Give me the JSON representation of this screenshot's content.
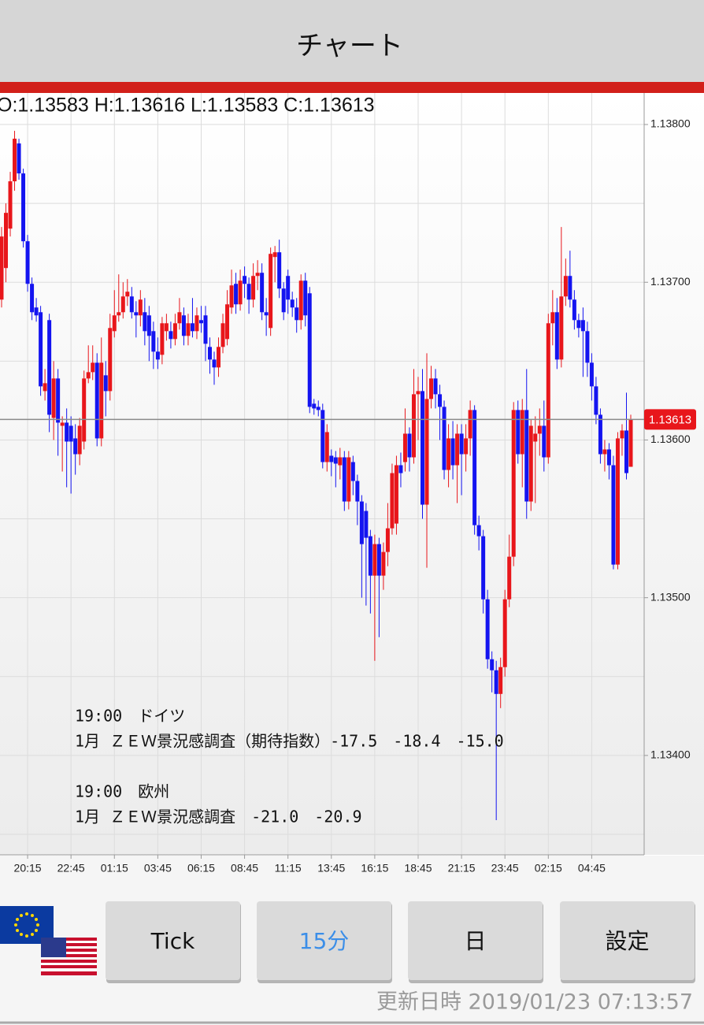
{
  "header": {
    "title": "チャート"
  },
  "chart_data": {
    "type": "candlestick",
    "ohlc_label": "O:1.13583 H:1.13616 L:1.13583 C:1.13613",
    "up_color": "#e8161b",
    "down_color": "#1414f0",
    "categories": [
      null,
      null,
      null,
      null,
      null,
      null,
      "20:15",
      null,
      null,
      null,
      null,
      null,
      null,
      null,
      null,
      null,
      "22:45",
      null,
      null,
      null,
      null,
      null,
      null,
      null,
      null,
      null,
      "01:15",
      null,
      null,
      null,
      null,
      null,
      null,
      null,
      null,
      null,
      "03:45",
      null,
      null,
      null,
      null,
      null,
      null,
      null,
      null,
      null,
      "06:15",
      null,
      null,
      null,
      null,
      null,
      null,
      null,
      null,
      null,
      "08:45",
      null,
      null,
      null,
      null,
      null,
      null,
      null,
      null,
      null,
      "11:15",
      null,
      null,
      null,
      null,
      null,
      null,
      null,
      null,
      null,
      "13:45",
      null,
      null,
      null,
      null,
      null,
      null,
      null,
      null,
      null,
      "16:15",
      null,
      null,
      null,
      null,
      null,
      null,
      null,
      null,
      null,
      "18:45",
      null,
      null,
      null,
      null,
      null,
      null,
      null,
      null,
      null,
      "21:15",
      null,
      null,
      null,
      null,
      null,
      null,
      null,
      null,
      null,
      "23:45",
      null,
      null,
      null,
      null,
      null,
      null,
      null,
      null,
      null,
      "02:15",
      null,
      null,
      null,
      null,
      null,
      null,
      null,
      null,
      null,
      "04:45",
      null,
      null,
      null,
      null,
      null,
      null,
      null,
      null,
      null
    ],
    "ohlc": [
      [
        1.13689,
        1.13735,
        1.13684,
        1.13729
      ],
      [
        1.13709,
        1.1375,
        1.137,
        1.13744
      ],
      [
        1.13734,
        1.1377,
        1.13729,
        1.13764
      ],
      [
        1.13764,
        1.13796,
        1.13758,
        1.13791
      ],
      [
        1.13788,
        1.13791,
        1.13765,
        1.13769
      ],
      [
        1.13769,
        1.13772,
        1.13722,
        1.13726
      ],
      [
        1.13726,
        1.1373,
        1.13694,
        1.13699
      ],
      [
        1.13699,
        1.13703,
        1.13676,
        1.13681
      ],
      [
        1.13684,
        1.1369,
        1.13675,
        1.13679
      ],
      [
        1.13681,
        1.13685,
        1.13628,
        1.13634
      ],
      [
        1.13631,
        1.13645,
        1.13625,
        1.13636
      ],
      [
        1.13676,
        1.1368,
        1.13605,
        1.13616
      ],
      [
        1.13614,
        1.1365,
        1.136,
        1.13639
      ],
      [
        1.13639,
        1.13645,
        1.1359,
        1.13611
      ],
      [
        1.13609,
        1.13615,
        1.1358,
        1.13611
      ],
      [
        1.13611,
        1.1362,
        1.1357,
        1.13599
      ],
      [
        1.13609,
        1.13615,
        1.13566,
        1.13599
      ],
      [
        1.13601,
        1.1361,
        1.13578,
        1.13591
      ],
      [
        1.13591,
        1.13614,
        1.13584,
        1.13609
      ],
      [
        1.13599,
        1.13644,
        1.13594,
        1.13639
      ],
      [
        1.13639,
        1.1366,
        1.13636,
        1.13643
      ],
      [
        1.13643,
        1.1366,
        1.13638,
        1.13649
      ],
      [
        1.13649,
        1.13655,
        1.13596,
        1.13601
      ],
      [
        1.13601,
        1.13665,
        1.13596,
        1.13649
      ],
      [
        1.13641,
        1.1365,
        1.13615,
        1.13631
      ],
      [
        1.13631,
        1.1368,
        1.13625,
        1.13671
      ],
      [
        1.13669,
        1.13695,
        1.13665,
        1.13679
      ],
      [
        1.13679,
        1.13705,
        1.13675,
        1.13681
      ],
      [
        1.13681,
        1.137,
        1.13677,
        1.13691
      ],
      [
        1.13691,
        1.13702,
        1.13685,
        1.13694
      ],
      [
        1.13691,
        1.13697,
        1.13677,
        1.13681
      ],
      [
        1.13681,
        1.13688,
        1.13665,
        1.13679
      ],
      [
        1.13679,
        1.13695,
        1.13672,
        1.13689
      ],
      [
        1.13681,
        1.1369,
        1.1366,
        1.13669
      ],
      [
        1.13679,
        1.13685,
        1.1365,
        1.13666
      ],
      [
        1.13669,
        1.13675,
        1.13645,
        1.13656
      ],
      [
        1.13656,
        1.13665,
        1.13645,
        1.13651
      ],
      [
        1.13654,
        1.13678,
        1.13648,
        1.13674
      ],
      [
        1.13669,
        1.1368,
        1.13663,
        1.13674
      ],
      [
        1.13669,
        1.13675,
        1.13658,
        1.13664
      ],
      [
        1.13664,
        1.1368,
        1.1366,
        1.13674
      ],
      [
        1.13674,
        1.1369,
        1.1367,
        1.13681
      ],
      [
        1.13679,
        1.13684,
        1.1366,
        1.13666
      ],
      [
        1.13666,
        1.1368,
        1.1366,
        1.13674
      ],
      [
        1.13674,
        1.1369,
        1.13665,
        1.13669
      ],
      [
        1.13669,
        1.13684,
        1.13664,
        1.13679
      ],
      [
        1.13676,
        1.13685,
        1.13668,
        1.13674
      ],
      [
        1.13679,
        1.13685,
        1.1365,
        1.13661
      ],
      [
        1.13659,
        1.13665,
        1.13642,
        1.13651
      ],
      [
        1.13651,
        1.13656,
        1.13635,
        1.13646
      ],
      [
        1.13646,
        1.13665,
        1.1364,
        1.13659
      ],
      [
        1.13659,
        1.1368,
        1.13655,
        1.13674
      ],
      [
        1.13664,
        1.13695,
        1.1366,
        1.13686
      ],
      [
        1.13684,
        1.13708,
        1.1368,
        1.13698
      ],
      [
        1.13699,
        1.13706,
        1.1368,
        1.13686
      ],
      [
        1.13686,
        1.13708,
        1.13682,
        1.13701
      ],
      [
        1.13704,
        1.1371,
        1.1369,
        1.13699
      ],
      [
        1.13699,
        1.13703,
        1.1368,
        1.13689
      ],
      [
        1.13689,
        1.13712,
        1.13684,
        1.13704
      ],
      [
        1.13704,
        1.13714,
        1.13695,
        1.13706
      ],
      [
        1.13706,
        1.13712,
        1.13676,
        1.13681
      ],
      [
        1.13681,
        1.1369,
        1.13666,
        1.13679
      ],
      [
        1.13671,
        1.13722,
        1.13666,
        1.13718
      ],
      [
        1.13716,
        1.13723,
        1.137,
        1.13719
      ],
      [
        1.13719,
        1.13727,
        1.1369,
        1.13696
      ],
      [
        1.13696,
        1.137,
        1.13676,
        1.13681
      ],
      [
        1.13704,
        1.13708,
        1.1368,
        1.13689
      ],
      [
        1.13689,
        1.13694,
        1.13678,
        1.13684
      ],
      [
        1.13684,
        1.1369,
        1.13668,
        1.13676
      ],
      [
        1.13676,
        1.13705,
        1.1367,
        1.13701
      ],
      [
        1.13701,
        1.13706,
        1.13672,
        1.13679
      ],
      [
        1.13693,
        1.13697,
        1.13617,
        1.13621
      ],
      [
        1.13623,
        1.13626,
        1.13616,
        1.1362
      ],
      [
        1.13621,
        1.13625,
        1.13615,
        1.13619
      ],
      [
        1.13619,
        1.13623,
        1.13582,
        1.13586
      ],
      [
        1.13586,
        1.1361,
        1.1358,
        1.13605
      ],
      [
        1.1359,
        1.13594,
        1.13577,
        1.13586
      ],
      [
        1.13589,
        1.13593,
        1.1357,
        1.13585
      ],
      [
        1.13584,
        1.13595,
        1.13575,
        1.13589
      ],
      [
        1.13589,
        1.13593,
        1.13555,
        1.13561
      ],
      [
        1.13561,
        1.13593,
        1.13556,
        1.13589
      ],
      [
        1.13586,
        1.1359,
        1.13565,
        1.13574
      ],
      [
        1.13574,
        1.13578,
        1.13546,
        1.13561
      ],
      [
        1.13561,
        1.13565,
        1.135,
        1.13534
      ],
      [
        1.13555,
        1.1356,
        1.13495,
        1.13538
      ],
      [
        1.13539,
        1.13543,
        1.1349,
        1.13514
      ],
      [
        1.13514,
        1.1354,
        1.1346,
        1.13534
      ],
      [
        1.13534,
        1.13538,
        1.13475,
        1.13514
      ],
      [
        1.13514,
        1.13535,
        1.13505,
        1.13529
      ],
      [
        1.13529,
        1.1356,
        1.1352,
        1.13544
      ],
      [
        1.13544,
        1.13585,
        1.1354,
        1.13579
      ],
      [
        1.13547,
        1.1359,
        1.1354,
        1.13584
      ],
      [
        1.13584,
        1.13592,
        1.1357,
        1.13579
      ],
      [
        1.13586,
        1.1362,
        1.1358,
        1.13604
      ],
      [
        1.13604,
        1.13608,
        1.1358,
        1.13589
      ],
      [
        1.13589,
        1.13645,
        1.13585,
        1.13629
      ],
      [
        1.13629,
        1.1364,
        1.136,
        1.13631
      ],
      [
        1.13631,
        1.13645,
        1.1355,
        1.13559
      ],
      [
        1.13559,
        1.13655,
        1.13519,
        1.13626
      ],
      [
        1.13626,
        1.13647,
        1.1362,
        1.13639
      ],
      [
        1.13639,
        1.13645,
        1.1362,
        1.13629
      ],
      [
        1.13629,
        1.13635,
        1.136,
        1.13621
      ],
      [
        1.13621,
        1.13625,
        1.13575,
        1.13581
      ],
      [
        1.13581,
        1.1361,
        1.1357,
        1.13601
      ],
      [
        1.13601,
        1.13612,
        1.13575,
        1.13584
      ],
      [
        1.13584,
        1.1361,
        1.1356,
        1.13604
      ],
      [
        1.13604,
        1.1361,
        1.13565,
        1.13591
      ],
      [
        1.13591,
        1.1361,
        1.1358,
        1.13601
      ],
      [
        1.13601,
        1.13625,
        1.1359,
        1.13619
      ],
      [
        1.13619,
        1.13622,
        1.1354,
        1.13546
      ],
      [
        1.13546,
        1.13552,
        1.1353,
        1.13539
      ],
      [
        1.13539,
        1.13543,
        1.1349,
        1.13499
      ],
      [
        1.13499,
        1.13505,
        1.13455,
        1.13461
      ],
      [
        1.13461,
        1.13466,
        1.1344,
        1.13454
      ],
      [
        1.13454,
        1.1346,
        1.13359,
        1.13439
      ],
      [
        1.13439,
        1.13462,
        1.1343,
        1.13456
      ],
      [
        1.13456,
        1.13505,
        1.1345,
        1.13499
      ],
      [
        1.13499,
        1.1354,
        1.13494,
        1.13526
      ],
      [
        1.13526,
        1.13624,
        1.1352,
        1.13619
      ],
      [
        1.13619,
        1.13625,
        1.13585,
        1.13591
      ],
      [
        1.13591,
        1.13626,
        1.1357,
        1.13619
      ],
      [
        1.13619,
        1.13645,
        1.1355,
        1.13561
      ],
      [
        1.13561,
        1.13613,
        1.13555,
        1.13609
      ],
      [
        1.13599,
        1.13615,
        1.1356,
        1.13604
      ],
      [
        1.13604,
        1.1362,
        1.1359,
        1.13609
      ],
      [
        1.13609,
        1.13625,
        1.1358,
        1.13589
      ],
      [
        1.13589,
        1.1368,
        1.13585,
        1.13674
      ],
      [
        1.13674,
        1.13695,
        1.1366,
        1.13681
      ],
      [
        1.13681,
        1.1369,
        1.13645,
        1.13651
      ],
      [
        1.13651,
        1.13735,
        1.13646,
        1.13691
      ],
      [
        1.13691,
        1.13715,
        1.13685,
        1.13704
      ],
      [
        1.13704,
        1.1372,
        1.13684,
        1.13689
      ],
      [
        1.13689,
        1.13695,
        1.1367,
        1.13676
      ],
      [
        1.13676,
        1.1368,
        1.13665,
        1.13671
      ],
      [
        1.13676,
        1.13684,
        1.1364,
        1.13669
      ],
      [
        1.13669,
        1.13675,
        1.1364,
        1.13649
      ],
      [
        1.13649,
        1.13655,
        1.13625,
        1.13634
      ],
      [
        1.13634,
        1.1364,
        1.1361,
        1.13616
      ],
      [
        1.13616,
        1.1362,
        1.13585,
        1.13591
      ],
      [
        1.13591,
        1.136,
        1.1358,
        1.13594
      ],
      [
        1.13594,
        1.13598,
        1.13575,
        1.13584
      ],
      [
        1.13584,
        1.1359,
        1.13518,
        1.13521
      ],
      [
        1.13521,
        1.13605,
        1.13518,
        1.13601
      ],
      [
        1.13601,
        1.1361,
        1.1359,
        1.13606
      ],
      [
        1.13606,
        1.1363,
        1.13575,
        1.13579
      ],
      [
        1.13583,
        1.13616,
        1.13583,
        1.13613
      ]
    ],
    "ylim": [
      1.13337,
      1.1382
    ],
    "yticks": [
      {
        "value": 1.138,
        "label": "1.13800"
      },
      {
        "value": 1.137,
        "label": "1.13700"
      },
      {
        "value": 1.136,
        "label": "1.13600"
      },
      {
        "value": 1.135,
        "label": "1.13500"
      },
      {
        "value": 1.134,
        "label": "1.13400"
      }
    ],
    "y_minor_ticks": [
      1.1375,
      1.1365,
      1.1355,
      1.1345,
      1.1335
    ],
    "grid": true,
    "current_price": {
      "value": 1.13613,
      "label": "1.13613"
    },
    "annotations": [
      "19:00　ドイツ",
      "1月 ＺＥＷ景況感調査（期待指数）-17.5　-18.4　-15.0",
      "19:00　欧州",
      "1月 ＺＥＷ景況感調査　-21.0　-20.9"
    ]
  },
  "buttons": [
    "Tick",
    "15分",
    "日",
    "設定"
  ],
  "footer": {
    "updated": "更新日時 2019/01/23 07:13:57"
  }
}
